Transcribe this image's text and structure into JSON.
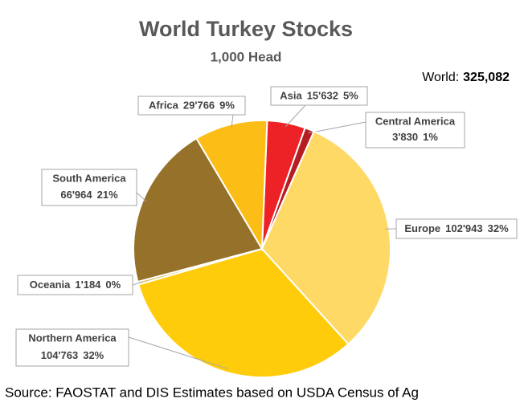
{
  "chart_data": {
    "type": "pie",
    "title": "World Turkey Stocks",
    "subtitle": "1,000 Head",
    "total_label": "World:",
    "total_value": "325,082",
    "source": "Source: FAOSTAT and DIS Estimates based on USDA Census of Ag",
    "categories": [
      "Asia",
      "Central America",
      "Europe",
      "Northern America",
      "Oceania",
      "South America",
      "Africa"
    ],
    "values": [
      15632,
      3830,
      102943,
      104763,
      1184,
      66964,
      29766
    ],
    "value_labels": [
      "15'632",
      "3'830",
      "102'943",
      "104'763",
      "1'184",
      "66'964",
      "29'766"
    ],
    "percent_labels": [
      "5%",
      "1%",
      "32%",
      "32%",
      "0%",
      "21%",
      "9%"
    ],
    "colors": [
      "#ec2227",
      "#b51d23",
      "#ffd966",
      "#ffcc0c",
      "#d9b95a",
      "#967129",
      "#fcbd17"
    ]
  }
}
